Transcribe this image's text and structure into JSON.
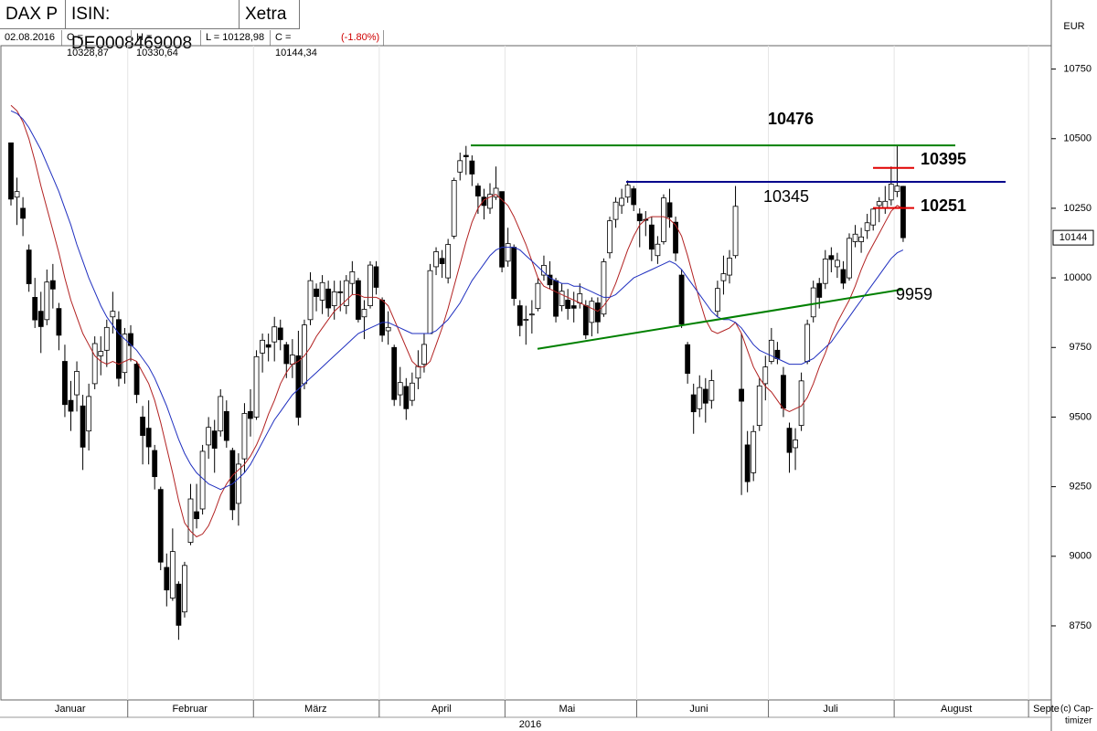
{
  "header": {
    "title": "DAX P",
    "isin": "ISIN: DE0008469008",
    "exchange": "Xetra",
    "date": "02.08.2016",
    "open": "O = 10328,87",
    "high": "H = 10330,64",
    "low": "L = 10128,98",
    "close": "C = 10144,34",
    "change": "(-1.80%)",
    "currency": "EUR",
    "copyright": [
      "(c) Cap-",
      "timizer"
    ]
  },
  "chart_data": {
    "type": "candlestick",
    "year": "2016",
    "ylim": [
      8484,
      10834
    ],
    "yticks": [
      8750,
      9000,
      9250,
      9500,
      9750,
      10000,
      10250,
      10500,
      10750
    ],
    "last_price": {
      "value": 10144.34,
      "label": "10144"
    },
    "up_color": "#ffffff",
    "down_color": "#000000",
    "months": [
      {
        "name": "Januar",
        "open": [
          10485,
          10290,
          10250,
          10100,
          9930,
          9880,
          9850,
          9990,
          9890,
          9700,
          9560,
          9580,
          9540,
          9450,
          9620,
          9720,
          9740,
          9860,
          9850,
          9660
        ],
        "high": [
          10485,
          10360,
          10290,
          10120,
          10000,
          9950,
          10030,
          10050,
          9910,
          9760,
          9630,
          9700,
          9580,
          9620,
          9790,
          9790,
          9850,
          9950,
          9880,
          9820
        ],
        "low": [
          10260,
          10190,
          10150,
          9950,
          9820,
          9730,
          9830,
          9890,
          9740,
          9500,
          9450,
          9520,
          9310,
          9380,
          9600,
          9650,
          9680,
          9800,
          9610,
          9620
        ],
        "close": [
          10283,
          10310,
          10214,
          9979,
          9849,
          9825,
          9985,
          9960,
          9794,
          9545,
          9521,
          9664,
          9392,
          9574,
          9764,
          9736,
          9822,
          9880,
          9639,
          9798
        ]
      },
      {
        "name": "Februar",
        "open": [
          9800,
          9690,
          9500,
          9460,
          9380,
          9240,
          8960,
          8850,
          8900,
          8800,
          9050,
          9160,
          9170,
          9400,
          9450,
          9450,
          9520,
          9380,
          9190,
          9350,
          9520
        ],
        "high": [
          9830,
          9700,
          9540,
          9560,
          9400,
          9250,
          9010,
          9100,
          8910,
          8980,
          9260,
          9260,
          9400,
          9500,
          9490,
          9600,
          9560,
          9390,
          9370,
          9550,
          9600
        ],
        "low": [
          9700,
          9550,
          9330,
          9330,
          9240,
          8950,
          8820,
          8840,
          8700,
          8780,
          9040,
          9100,
          9150,
          9350,
          9300,
          9430,
          9390,
          9130,
          9110,
          9300,
          9430
        ],
        "close": [
          9757,
          9581,
          9434,
          9393,
          9286,
          8979,
          8879,
          9017,
          8752,
          8967,
          9206,
          9135,
          9377,
          9463,
          9388,
          9574,
          9416,
          9167,
          9331,
          9513,
          9495
        ]
      },
      {
        "name": "März",
        "open": [
          9500,
          9730,
          9760,
          9770,
          9820,
          9760,
          9690,
          9720,
          9620,
          9850,
          9960,
          9920,
          9960,
          9900,
          9950,
          9900,
          9980,
          9990,
          9860,
          9900,
          10040
        ],
        "high": [
          9740,
          9800,
          9800,
          9860,
          9850,
          9770,
          9780,
          9810,
          9850,
          10020,
          9980,
          10010,
          9990,
          9990,
          9990,
          10010,
          10060,
          10000,
          9920,
          10060,
          10060
        ],
        "low": [
          9490,
          9660,
          9700,
          9700,
          9740,
          9640,
          9640,
          9470,
          9600,
          9830,
          9880,
          9870,
          9860,
          9850,
          9880,
          9870,
          9940,
          9840,
          9780,
          9890,
          9940
        ],
        "close": [
          9717,
          9776,
          9751,
          9824,
          9778,
          9692,
          9723,
          9499,
          9831,
          9990,
          9933,
          9983,
          9892,
          9950,
          9948,
          9990,
          10022,
          9851,
          9887,
          10046,
          9966
        ]
      },
      {
        "name": "April",
        "open": [
          9920,
          9810,
          9750,
          9580,
          9610,
          9560,
          9640,
          9690,
          9800,
          10040,
          10070,
          10000,
          10150,
          10380,
          10440,
          10420,
          10330,
          10290,
          10250,
          10290,
          10310
        ],
        "high": [
          9930,
          9880,
          9760,
          9680,
          9640,
          9660,
          9740,
          9800,
          10050,
          10110,
          10100,
          10140,
          10360,
          10450,
          10474,
          10440,
          10340,
          10320,
          10340,
          10400,
          10310
        ],
        "low": [
          9770,
          9760,
          9540,
          9540,
          9490,
          9540,
          9600,
          9660,
          9800,
          10010,
          10000,
          9980,
          10140,
          10350,
          10370,
          10330,
          10230,
          10210,
          10230,
          10280,
          10020
        ],
        "close": [
          9794,
          9822,
          9563,
          9624,
          9530,
          9622,
          9682,
          9761,
          10026,
          10094,
          10051,
          10120,
          10350,
          10421,
          10435,
          10373,
          10294,
          10260,
          10300,
          10322,
          10039
        ]
      },
      {
        "name": "Mai",
        "open": [
          10060,
          10110,
          9900,
          9850,
          9870,
          9890,
          10010,
          10010,
          9990,
          9900,
          9920,
          9900,
          9910,
          9900,
          9840,
          9910,
          9870,
          10090,
          10210,
          10260,
          10290,
          10320
        ],
        "high": [
          10180,
          10120,
          9920,
          9900,
          9920,
          10000,
          10080,
          10060,
          10000,
          9980,
          9960,
          9950,
          9980,
          9920,
          9930,
          9930,
          10070,
          10220,
          10290,
          10320,
          10350,
          10330
        ],
        "low": [
          10040,
          9900,
          9790,
          9760,
          9800,
          9880,
          9990,
          9960,
          9840,
          9880,
          9850,
          9840,
          9890,
          9780,
          9790,
          9800,
          9860,
          10070,
          10180,
          10230,
          10270,
          10240
        ],
        "close": [
          10123,
          9926,
          9829,
          9851,
          9870,
          9980,
          10045,
          9975,
          9862,
          9952,
          9890,
          9891,
          9943,
          9795,
          9916,
          9842,
          10058,
          10205,
          10272,
          10286,
          10333,
          10263
        ]
      },
      {
        "name": "Juni",
        "open": [
          10230,
          10210,
          10190,
          10080,
          10130,
          10270,
          10200,
          10010,
          9760,
          9580,
          9530,
          9600,
          9560,
          9880,
          9990,
          10010,
          10080,
          9600,
          9400,
          9300,
          9470,
          9620
        ],
        "high": [
          10250,
          10240,
          10220,
          10150,
          10300,
          10320,
          10220,
          10030,
          9770,
          9620,
          9650,
          9640,
          9670,
          9990,
          10080,
          10100,
          10330,
          9800,
          9450,
          9470,
          9640,
          9720
        ],
        "low": [
          10110,
          10150,
          10060,
          10050,
          10120,
          10180,
          10060,
          9820,
          9620,
          9440,
          9500,
          9480,
          9530,
          9860,
          9940,
          9980,
          10070,
          9220,
          9230,
          9270,
          9450,
          9560
        ],
        "close": [
          10205,
          10208,
          10103,
          10121,
          10287,
          10218,
          10089,
          9834,
          9657,
          9519,
          9606,
          9550,
          9631,
          9962,
          10015,
          10071,
          10257,
          9557,
          9268,
          9448,
          9612,
          9680
        ]
      },
      {
        "name": "Juli",
        "open": [
          9700,
          9740,
          9650,
          9460,
          9390,
          9470,
          9700,
          9860,
          9980,
          9980,
          10080,
          10040,
          10030,
          10000,
          10130,
          10130,
          10170,
          10190,
          10260,
          10250,
          10280
        ],
        "high": [
          9820,
          9770,
          9680,
          9480,
          9460,
          9660,
          9850,
          9990,
          10000,
          10100,
          10110,
          10090,
          10060,
          10160,
          10190,
          10180,
          10230,
          10250,
          10290,
          10330,
          10400
        ],
        "low": [
          9690,
          9690,
          9500,
          9300,
          9310,
          9450,
          9690,
          9840,
          9890,
          9960,
          10020,
          10000,
          9960,
          9990,
          10110,
          10090,
          10140,
          10170,
          10200,
          10230,
          10260
        ],
        "close": [
          9776,
          9710,
          9532,
          9373,
          9418,
          9630,
          9833,
          9964,
          9930,
          10068,
          10066,
          10063,
          9981,
          10142,
          10157,
          10147,
          10198,
          10247,
          10274,
          10275,
          10337
        ]
      },
      {
        "name": "August",
        "open": [
          10310,
          10328.87
        ],
        "high": [
          10476,
          10330.64
        ],
        "low": [
          10290,
          10128.98
        ],
        "close": [
          10330,
          10144.34
        ]
      },
      {
        "name": "Septe",
        "open": [],
        "high": [],
        "low": [],
        "close": []
      }
    ],
    "averages": [
      {
        "color": "#b22222",
        "values": [
          10620,
          10600,
          10560,
          10500,
          10420,
          10330,
          10250,
          10170,
          10090,
          10000,
          9920,
          9860,
          9800,
          9760,
          9720,
          9700,
          9690,
          9700,
          9690,
          9700,
          9710,
          9700,
          9660,
          9620,
          9560,
          9480,
          9390,
          9300,
          9200,
          9120,
          9090,
          9070,
          9080,
          9110,
          9160,
          9220,
          9260,
          9290,
          9310,
          9330,
          9360,
          9400,
          9450,
          9510,
          9560,
          9620,
          9660,
          9690,
          9700,
          9720,
          9750,
          9790,
          9820,
          9850,
          9880,
          9900,
          9920,
          9940,
          9940,
          9930,
          9930,
          9930,
          9920,
          9900,
          9850,
          9800,
          9750,
          9700,
          9680,
          9680,
          9700,
          9760,
          9820,
          9890,
          9970,
          10050,
          10130,
          10200,
          10250,
          10280,
          10290,
          10300,
          10280,
          10260,
          10220,
          10170,
          10120,
          10060,
          10000,
          9970,
          9960,
          9950,
          9940,
          9930,
          9920,
          9910,
          9900,
          9890,
          9880,
          9900,
          9930,
          9980,
          10040,
          10100,
          10150,
          10190,
          10210,
          10220,
          10220,
          10220,
          10210,
          10190,
          10150,
          10080,
          10000,
          9920,
          9850,
          9810,
          9800,
          9810,
          9820,
          9840,
          9800,
          9740,
          9680,
          9640,
          9610,
          9590,
          9560,
          9530,
          9520,
          9530,
          9540,
          9570,
          9620,
          9680,
          9730,
          9790,
          9840,
          9880,
          9920,
          9970,
          10030,
          10080,
          10120,
          10160,
          10200,
          10240,
          10260,
          10250
        ]
      },
      {
        "color": "#1f2fbf",
        "values": [
          10600,
          10590,
          10570,
          10540,
          10500,
          10460,
          10410,
          10360,
          10310,
          10250,
          10190,
          10120,
          10060,
          10000,
          9950,
          9900,
          9860,
          9830,
          9800,
          9780,
          9760,
          9740,
          9710,
          9680,
          9640,
          9590,
          9540,
          9480,
          9420,
          9370,
          9330,
          9300,
          9280,
          9260,
          9250,
          9240,
          9250,
          9260,
          9280,
          9300,
          9330,
          9370,
          9410,
          9450,
          9490,
          9520,
          9550,
          9580,
          9600,
          9620,
          9640,
          9660,
          9680,
          9700,
          9720,
          9740,
          9760,
          9780,
          9800,
          9810,
          9820,
          9830,
          9840,
          9840,
          9830,
          9820,
          9810,
          9800,
          9800,
          9800,
          9800,
          9810,
          9830,
          9850,
          9880,
          9910,
          9950,
          9990,
          10020,
          10050,
          10080,
          10100,
          10110,
          10110,
          10110,
          10100,
          10080,
          10060,
          10040,
          10020,
          10000,
          9990,
          9980,
          9980,
          9970,
          9970,
          9960,
          9950,
          9940,
          9930,
          9930,
          9940,
          9960,
          9980,
          10000,
          10010,
          10020,
          10030,
          10040,
          10050,
          10060,
          10050,
          10030,
          10000,
          9970,
          9940,
          9910,
          9880,
          9860,
          9850,
          9850,
          9840,
          9820,
          9790,
          9760,
          9740,
          9730,
          9720,
          9710,
          9700,
          9690,
          9690,
          9690,
          9700,
          9710,
          9730,
          9750,
          9770,
          9800,
          9830,
          9860,
          9890,
          9920,
          9950,
          9980,
          10010,
          10040,
          10070,
          10090,
          10100
        ]
      }
    ],
    "levels": [
      {
        "label": "10476",
        "value": 10476,
        "color": "#008000",
        "bold": true
      },
      {
        "label": "10345",
        "value": 10345,
        "color": "#00008b",
        "bold": false
      },
      {
        "label": "10395",
        "value": 10395,
        "color": "#e00000",
        "bold": true
      },
      {
        "label": "10251",
        "value": 10251,
        "color": "#e00000",
        "bold": true
      }
    ],
    "trendline": {
      "label": "9959",
      "values": [
        9745,
        9959
      ],
      "color": "#008000"
    }
  }
}
